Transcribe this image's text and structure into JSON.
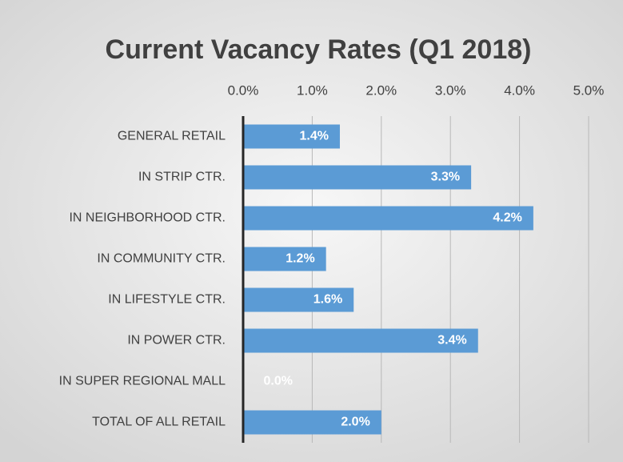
{
  "chart_data": {
    "type": "bar",
    "orientation": "horizontal",
    "title": "Current Vacancy Rates (Q1 2018)",
    "categories": [
      "GENERAL RETAIL",
      "IN STRIP CTR.",
      "IN NEIGHBORHOOD CTR.",
      "IN COMMUNITY CTR.",
      "IN LIFESTYLE CTR.",
      "IN POWER CTR.",
      "IN SUPER REGIONAL MALL",
      "TOTAL OF ALL RETAIL"
    ],
    "values": [
      1.4,
      3.3,
      4.2,
      1.2,
      1.6,
      3.4,
      0.0,
      2.0
    ],
    "value_labels": [
      "1.4%",
      "3.3%",
      "4.2%",
      "1.2%",
      "1.6%",
      "3.4%",
      "0.0%",
      "2.0%"
    ],
    "color": "#5b9bd5",
    "xlim": [
      0,
      5
    ],
    "xticks": [
      {
        "value": 0,
        "label": "0.0%"
      },
      {
        "value": 1,
        "label": "1.0%"
      },
      {
        "value": 2,
        "label": "2.0%"
      },
      {
        "value": 3,
        "label": "3.0%"
      },
      {
        "value": 4,
        "label": "4.0%"
      },
      {
        "value": 5,
        "label": "5.0%"
      }
    ],
    "grid": true
  }
}
